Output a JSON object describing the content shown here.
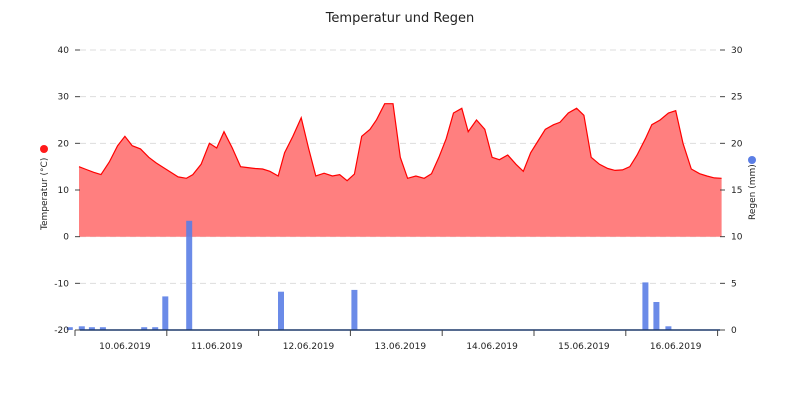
{
  "chart_data": {
    "type": "line",
    "title": "Temperatur und Regen",
    "x_labels": [
      "10.06.2019",
      "11.06.2019",
      "12.06.2019",
      "13.06.2019",
      "14.06.2019",
      "15.06.2019",
      "16.06.2019"
    ],
    "y_left": {
      "label": "Temperatur (°C)",
      "min": -20,
      "max": 40,
      "ticks": [
        "40",
        "30",
        "20",
        "10",
        "0",
        "-10",
        "-20"
      ],
      "marker_color": "#ff1a1a"
    },
    "y_right": {
      "label": "Regen (mm)",
      "min": 0,
      "max": 30,
      "ticks": [
        "30",
        "25",
        "20",
        "15",
        "10",
        "5",
        "0"
      ],
      "marker_color": "#5b7ee5"
    },
    "temperature": {
      "color_line": "#ff0000",
      "color_fill": "#ff7f7f",
      "x_days": [
        0.0,
        0.08,
        0.16,
        0.24,
        0.33,
        0.42,
        0.5,
        0.58,
        0.67,
        0.76,
        0.84,
        0.92,
        1.0,
        1.08,
        1.17,
        1.24,
        1.33,
        1.42,
        1.5,
        1.58,
        1.67,
        1.76,
        1.84,
        1.92,
        2.0,
        2.08,
        2.17,
        2.24,
        2.33,
        2.42,
        2.5,
        2.58,
        2.67,
        2.76,
        2.84,
        2.92,
        3.0,
        3.08,
        3.17,
        3.24,
        3.33,
        3.42,
        3.5,
        3.58,
        3.67,
        3.76,
        3.84,
        3.92,
        4.0,
        4.08,
        4.17,
        4.24,
        4.33,
        4.42,
        4.5,
        4.58,
        4.67,
        4.76,
        4.84,
        4.92,
        5.0,
        5.08,
        5.17,
        5.24,
        5.33,
        5.42,
        5.5,
        5.58,
        5.67,
        5.76,
        5.84,
        5.92,
        6.0,
        6.08,
        6.17,
        6.24,
        6.33,
        6.42,
        6.5,
        6.58,
        6.67,
        6.76,
        6.84,
        6.92,
        7.0
      ],
      "y": [
        15.0,
        14.4,
        13.8,
        13.3,
        16.0,
        19.5,
        21.5,
        19.5,
        18.8,
        17.0,
        15.8,
        14.8,
        13.8,
        12.8,
        12.5,
        13.3,
        15.5,
        20.0,
        19.0,
        22.5,
        19.0,
        15.0,
        14.8,
        14.6,
        14.5,
        14.0,
        13.0,
        18.0,
        21.5,
        25.5,
        19.0,
        13.0,
        13.6,
        13.0,
        13.3,
        12.0,
        13.4,
        21.5,
        23.0,
        25.0,
        28.5,
        28.5,
        17.0,
        12.5,
        13.0,
        12.5,
        13.5,
        17.0,
        21.0,
        26.5,
        27.5,
        22.5,
        25.0,
        23.0,
        17.0,
        16.5,
        17.5,
        15.5,
        14.0,
        18.0,
        20.5,
        23.0,
        24.0,
        24.5,
        26.5,
        27.5,
        26.0,
        17.0,
        15.5,
        14.6,
        14.2,
        14.3,
        15.0,
        17.5,
        21.0,
        24.0,
        25.0,
        26.5,
        27.0,
        20.0,
        14.5,
        13.5,
        13.0,
        12.6,
        12.5
      ]
    },
    "rain": {
      "color": "#5b7ee5",
      "x_days": [
        -0.1,
        0.03,
        0.14,
        0.26,
        0.71,
        0.83,
        0.94,
        1.2,
        2.2,
        3.0,
        6.17,
        6.29,
        6.42
      ],
      "mm": [
        0.3,
        0.4,
        0.3,
        0.3,
        0.3,
        0.3,
        3.6,
        11.7,
        4.1,
        4.3,
        5.1,
        3.0,
        0.4
      ]
    }
  }
}
